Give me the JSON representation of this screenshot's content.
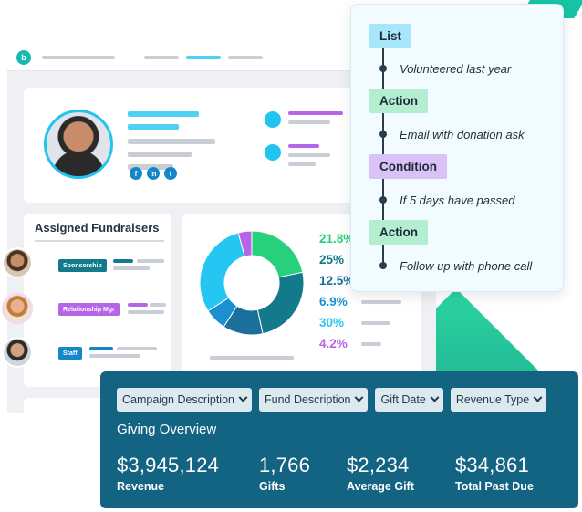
{
  "workflow": {
    "steps": [
      {
        "type": "List",
        "note": "Volunteered last year"
      },
      {
        "type": "Action",
        "note": "Email with donation ask"
      },
      {
        "type": "Condition",
        "note": "If 5 days have passed"
      },
      {
        "type": "Action",
        "note": "Follow up with phone call"
      }
    ]
  },
  "profile": {
    "social_icons": [
      "facebook-icon",
      "linkedin-icon",
      "twitter-icon"
    ],
    "social_glyphs": [
      "f",
      "in",
      "t"
    ]
  },
  "fundraisers": {
    "title": "Assigned Fundraisers",
    "people": [
      {
        "role": "Sponsorship",
        "color": "#137a8c"
      },
      {
        "role": "Relationship Mgr",
        "color": "#b765e8"
      },
      {
        "role": "Staff",
        "color": "#1587c9"
      }
    ]
  },
  "chart_data": {
    "type": "pie",
    "values": [
      21.8,
      25,
      12.5,
      6.9,
      30,
      4.2
    ],
    "labels": [
      "21.8%",
      "25%",
      "12.5%",
      "6.9%",
      "30%",
      "4.2%"
    ],
    "colors": [
      "#26d07c",
      "#137a8c",
      "#1a6f9b",
      "#1b8fd0",
      "#26c6f2",
      "#b765e8"
    ]
  },
  "overview": {
    "filters": [
      "Campaign Description",
      "Fund Description",
      "Gift Date",
      "Revenue Type"
    ],
    "title": "Giving Overview",
    "stats": [
      {
        "value": "$3,945,124",
        "label": "Revenue"
      },
      {
        "value": "1,766",
        "label": "Gifts"
      },
      {
        "value": "$2,234",
        "label": "Average Gift"
      },
      {
        "value": "$34,861",
        "label": "Total Past Due"
      }
    ]
  },
  "brand": {
    "accent": "#23c3f0",
    "panel": "#136383",
    "teal": "#19b9b3"
  }
}
